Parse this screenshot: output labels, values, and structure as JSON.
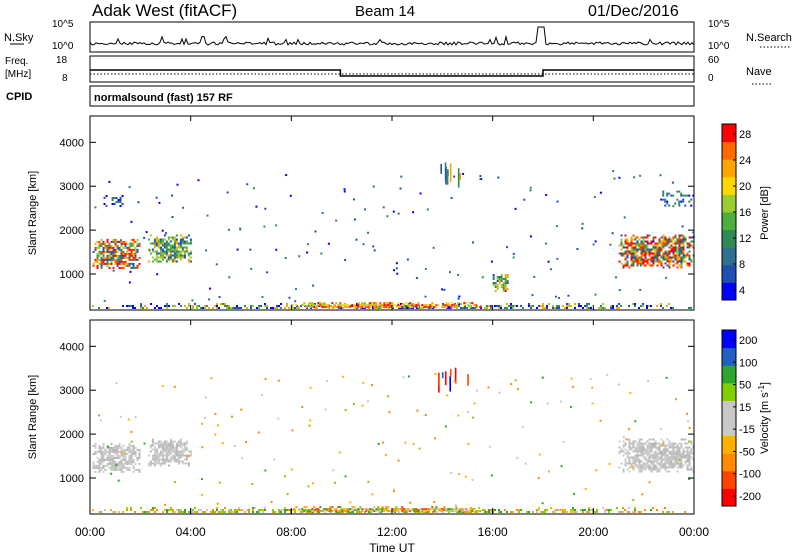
{
  "header": {
    "title": "Adak West (fitACF)",
    "beam": "Beam 14",
    "date": "01/Dec/2016"
  },
  "panels": {
    "nsky": {
      "label": "N.Sky",
      "right_label": "N.Search",
      "left_ticks": [
        "10^5",
        "10^0"
      ],
      "right_ticks": [
        "10^5",
        "10^0"
      ]
    },
    "freq": {
      "label_line1": "Freq.",
      "label_line2": "[MHz]",
      "left_ticks": [
        "18",
        "8"
      ],
      "right_ticks": [
        "60",
        "0"
      ],
      "right_label": "Nave",
      "freq_steps": [
        {
          "from_h": 0,
          "to_h": 9.95,
          "mhz": 12.5
        },
        {
          "from_h": 9.95,
          "to_h": 18,
          "mhz": 9.5
        },
        {
          "from_h": 18,
          "to_h": 24,
          "mhz": 12.5
        }
      ]
    },
    "cpid": {
      "label": "CPID",
      "text": "normalsound (fast) 157 RF"
    }
  },
  "chart_data": [
    {
      "type": "heatmap",
      "title": "",
      "xlabel": "Time UT",
      "ylabel": "Slant Range [km]",
      "xlim": [
        0,
        24
      ],
      "ylim": [
        180,
        4600
      ],
      "x_ticks": [
        "00:00",
        "04:00",
        "08:00",
        "12:00",
        "16:00",
        "20:00",
        "00:00"
      ],
      "y_ticks": [
        "1000",
        "2000",
        "3000",
        "4000"
      ],
      "colorbar": {
        "label": "Power [dB]",
        "ticks": [
          "28",
          "24",
          "20",
          "16",
          "12",
          "8",
          "4"
        ],
        "range": [
          0,
          30
        ],
        "colors": [
          "#0000ff",
          "#1f4fb0",
          "#2f6f8f",
          "#2e8b57",
          "#4cae3c",
          "#9acd32",
          "#ffd700",
          "#ffa500",
          "#ff6a00",
          "#ff0000"
        ]
      },
      "echo_regions": [
        {
          "t0": 0.1,
          "t1": 2.0,
          "r0": 1150,
          "r1": 1800,
          "level": "strong"
        },
        {
          "t0": 2.3,
          "t1": 4.0,
          "r0": 1300,
          "r1": 1900,
          "level": "medium"
        },
        {
          "t0": 0.3,
          "t1": 1.3,
          "r0": 2550,
          "r1": 2800,
          "level": "weak"
        },
        {
          "t0": 21.0,
          "t1": 24.0,
          "r0": 1150,
          "r1": 1900,
          "level": "strong"
        },
        {
          "t0": 22.5,
          "t1": 24.0,
          "r0": 2550,
          "r1": 2900,
          "level": "weak"
        },
        {
          "t0": 0.0,
          "t1": 24.0,
          "r0": 230,
          "r1": 340,
          "level": "ground"
        },
        {
          "t0": 8.0,
          "t1": 15.5,
          "r0": 250,
          "r1": 360,
          "level": "hot"
        },
        {
          "t0": 13.8,
          "t1": 15.0,
          "r0": 3050,
          "r1": 3550,
          "level": "streaks"
        },
        {
          "t0": 16.0,
          "t1": 16.6,
          "r0": 600,
          "r1": 1000,
          "level": "medium"
        }
      ]
    },
    {
      "type": "heatmap",
      "title": "",
      "xlabel": "Time UT",
      "ylabel": "Slant Range [km]",
      "xlim": [
        0,
        24
      ],
      "ylim": [
        180,
        4600
      ],
      "x_ticks": [
        "00:00",
        "04:00",
        "08:00",
        "12:00",
        "16:00",
        "20:00",
        "00:00"
      ],
      "y_ticks": [
        "1000",
        "2000",
        "3000",
        "4000"
      ],
      "colorbar": {
        "label": "Velocity [m s^-1]",
        "ticks": [
          "200",
          "100",
          "50",
          "15",
          "-15",
          "-50",
          "-100",
          "-200"
        ],
        "range": [
          -250,
          250
        ],
        "colors": [
          "#ff0000",
          "#ff4500",
          "#ff8c00",
          "#ffb000",
          "#c8c8c8",
          "#c8c8c8",
          "#7fd000",
          "#2ea52e",
          "#2060c0",
          "#0000ff"
        ]
      },
      "echo_regions": [
        {
          "t0": 0.1,
          "t1": 2.0,
          "r0": 1150,
          "r1": 1800,
          "level": "ground-scatter"
        },
        {
          "t0": 2.3,
          "t1": 4.0,
          "r0": 1300,
          "r1": 1900,
          "level": "ground-scatter"
        },
        {
          "t0": 21.0,
          "t1": 24.0,
          "r0": 1150,
          "r1": 1900,
          "level": "ground-scatter"
        },
        {
          "t0": 0.0,
          "t1": 24.0,
          "r0": 230,
          "r1": 340,
          "level": "mixed"
        },
        {
          "t0": 8.0,
          "t1": 15.5,
          "r0": 250,
          "r1": 360,
          "level": "negative"
        },
        {
          "t0": 13.8,
          "t1": 15.0,
          "r0": 3050,
          "r1": 3550,
          "level": "streaks"
        }
      ]
    }
  ]
}
